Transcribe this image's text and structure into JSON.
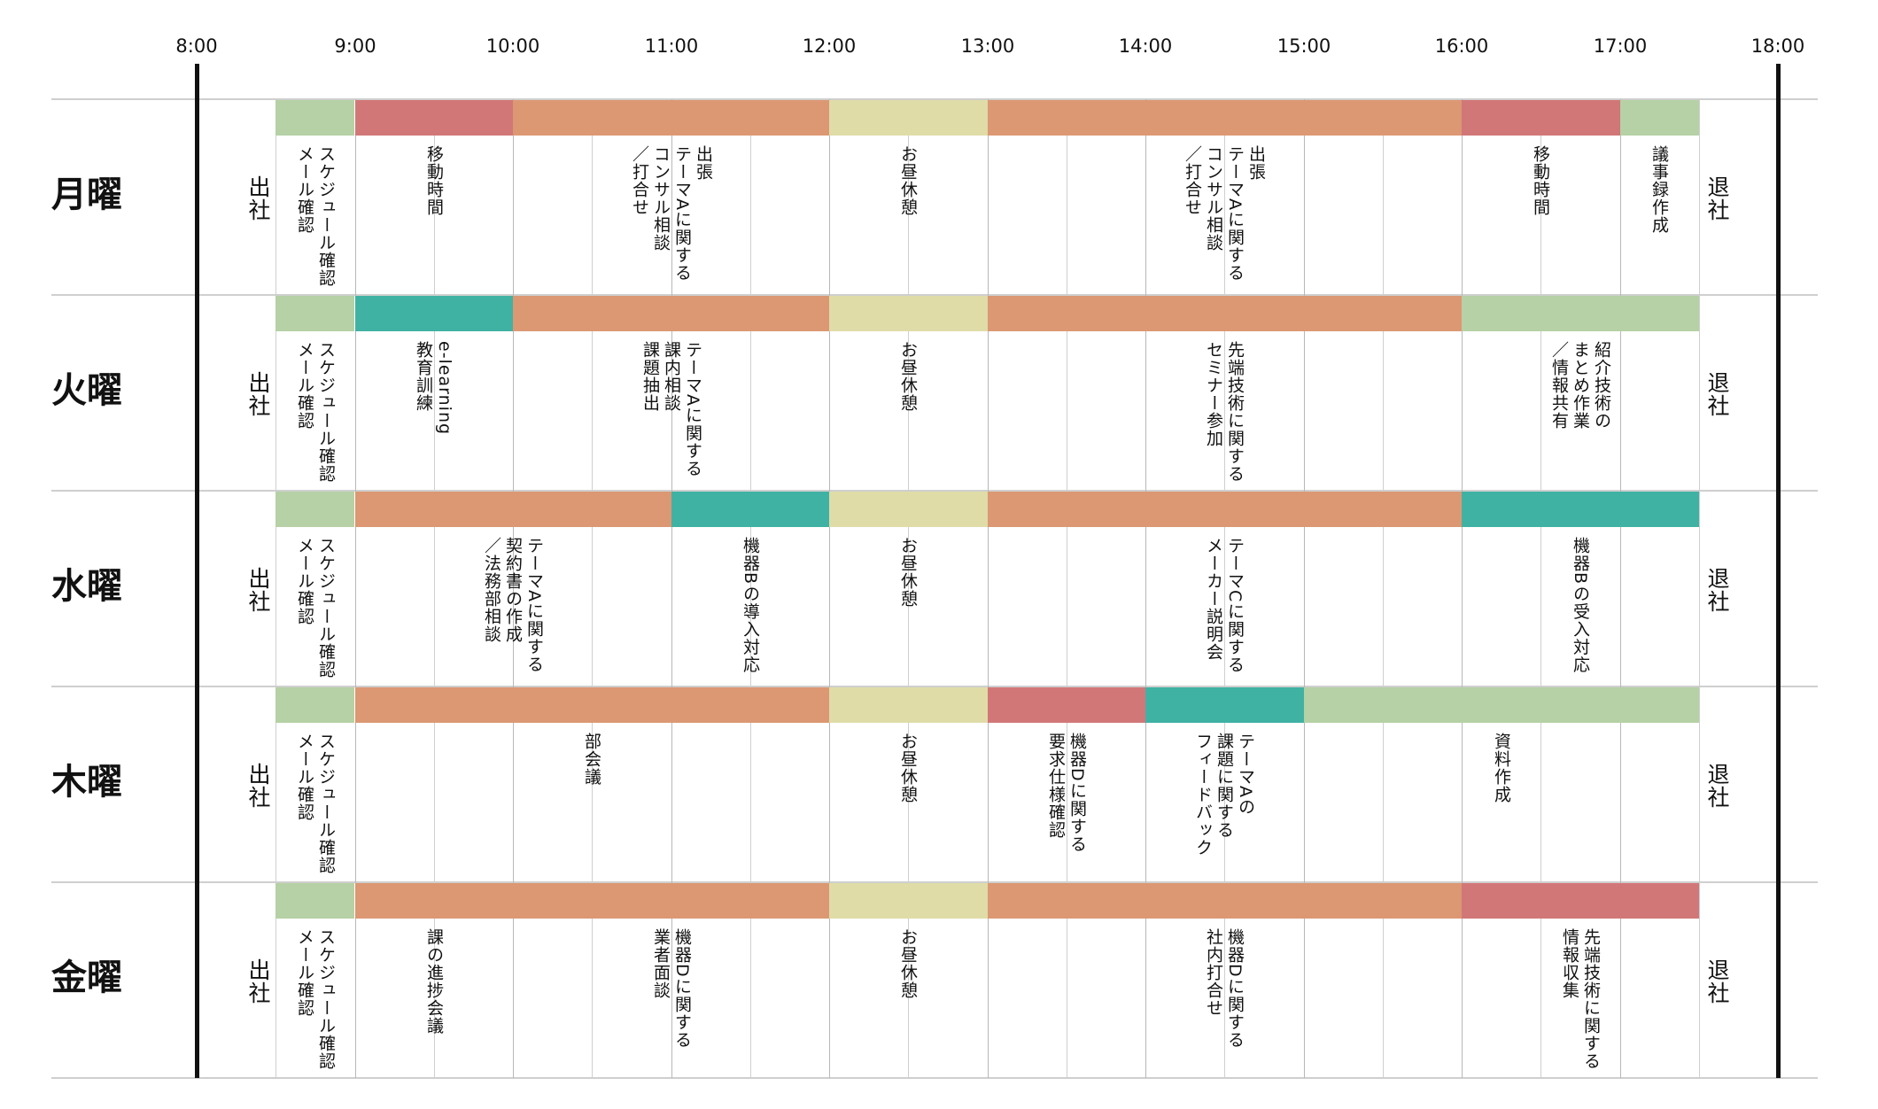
{
  "time_labels": [
    "8:00",
    "9:00",
    "10:00",
    "11:00",
    "12:00",
    "13:00",
    "14:00",
    "15:00",
    "16:00",
    "17:00",
    "18:00"
  ],
  "colors": {
    "routine": "#b5d1a5",
    "travel": "#d27778",
    "work": "#db9873",
    "lunch": "#dfdca8",
    "study": "#3fb2a4"
  },
  "days": [
    {
      "name": "月曜",
      "arrive": "出社",
      "leave": "退社",
      "blocks": [
        {
          "start": 8.5,
          "end": 9,
          "color": "routine",
          "label": "スケジュール確認\nメール確認"
        },
        {
          "start": 9,
          "end": 10,
          "color": "travel",
          "label": "移動時間"
        },
        {
          "start": 10,
          "end": 12,
          "color": "work",
          "label": "出張\nテーマAに関する\nコンサル相談\n／打合せ"
        },
        {
          "start": 12,
          "end": 13,
          "color": "lunch",
          "label": "お昼休憩"
        },
        {
          "start": 13,
          "end": 16,
          "color": "work",
          "label": "出張\nテーマAに関する\nコンサル相談\n／打合せ"
        },
        {
          "start": 16,
          "end": 17,
          "color": "travel",
          "label": "移動時間"
        },
        {
          "start": 17,
          "end": 17.5,
          "color": "routine",
          "label": "議事録作成"
        }
      ]
    },
    {
      "name": "火曜",
      "arrive": "出社",
      "leave": "退社",
      "blocks": [
        {
          "start": 8.5,
          "end": 9,
          "color": "routine",
          "label": "スケジュール確認\nメール確認"
        },
        {
          "start": 9,
          "end": 10,
          "color": "study",
          "label": "e-learning\n教育訓練"
        },
        {
          "start": 10,
          "end": 12,
          "color": "work",
          "label": "テーマAに関する\n課内相談\n課題抽出"
        },
        {
          "start": 12,
          "end": 13,
          "color": "lunch",
          "label": "お昼休憩"
        },
        {
          "start": 13,
          "end": 16,
          "color": "work",
          "label": "先端技術に関する\nセミナー参加"
        },
        {
          "start": 16,
          "end": 17.5,
          "color": "routine",
          "label": "紹介技術の\nまとめ作業\n／情報共有"
        }
      ]
    },
    {
      "name": "水曜",
      "arrive": "出社",
      "leave": "退社",
      "blocks": [
        {
          "start": 8.5,
          "end": 9,
          "color": "routine",
          "label": "スケジュール確認\nメール確認"
        },
        {
          "start": 9,
          "end": 11,
          "color": "work",
          "label": "テーマAに関する\n契約書の作成\n／法務部相談"
        },
        {
          "start": 11,
          "end": 12,
          "color": "study",
          "label": "機器Bの導入対応"
        },
        {
          "start": 12,
          "end": 13,
          "color": "lunch",
          "label": "お昼休憩"
        },
        {
          "start": 13,
          "end": 16,
          "color": "work",
          "label": "テーマCに関する\nメーカー説明会"
        },
        {
          "start": 16,
          "end": 17.5,
          "color": "study",
          "label": "機器Bの受入対応"
        }
      ]
    },
    {
      "name": "木曜",
      "arrive": "出社",
      "leave": "退社",
      "blocks": [
        {
          "start": 8.5,
          "end": 9,
          "color": "routine",
          "label": "スケジュール確認\nメール確認"
        },
        {
          "start": 9,
          "end": 12,
          "color": "work",
          "label": "部会議"
        },
        {
          "start": 12,
          "end": 13,
          "color": "lunch",
          "label": "お昼休憩"
        },
        {
          "start": 13,
          "end": 14,
          "color": "travel",
          "label": "機器Dに関する\n要求仕様確認"
        },
        {
          "start": 14,
          "end": 15,
          "color": "study",
          "label": "テーマAの\n課題に関する\nフィードバック"
        },
        {
          "start": 15,
          "end": 17.5,
          "color": "routine",
          "label": "資料作成"
        }
      ]
    },
    {
      "name": "金曜",
      "arrive": "出社",
      "leave": "退社",
      "blocks": [
        {
          "start": 8.5,
          "end": 9,
          "color": "routine",
          "label": "スケジュール確認\nメール確認"
        },
        {
          "start": 9,
          "end": 10,
          "color": "work",
          "label": "課の進捗会議"
        },
        {
          "start": 10,
          "end": 12,
          "color": "work",
          "label": "機器Dに関する\n業者面談"
        },
        {
          "start": 12,
          "end": 13,
          "color": "lunch",
          "label": "お昼休憩"
        },
        {
          "start": 13,
          "end": 16,
          "color": "work",
          "label": "機器Dに関する\n社内打合せ"
        },
        {
          "start": 16,
          "end": 17.5,
          "color": "travel",
          "label": "先端技術に関する\n情報収集"
        }
      ]
    }
  ]
}
